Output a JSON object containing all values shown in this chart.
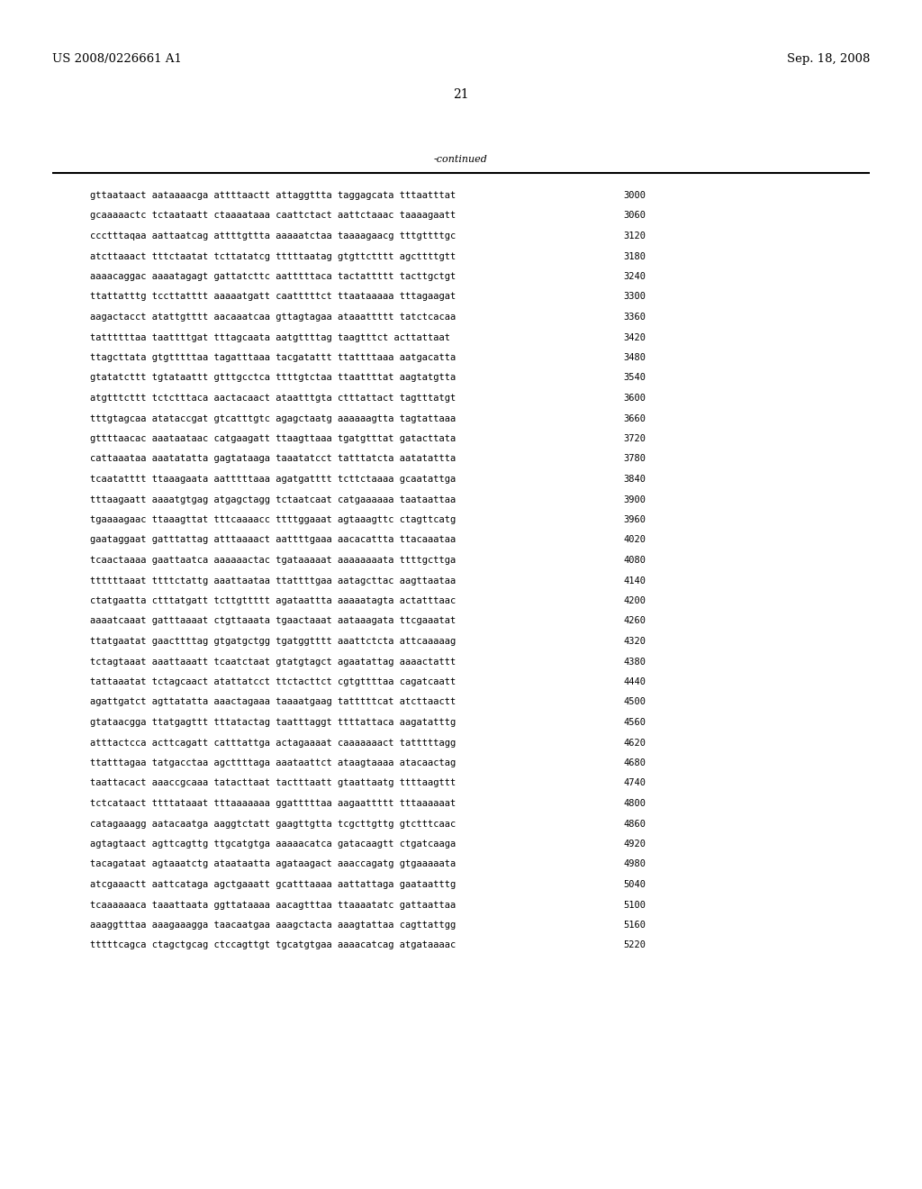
{
  "header_left": "US 2008/0226661 A1",
  "header_right": "Sep. 18, 2008",
  "page_number": "21",
  "continued_label": "-continued",
  "background_color": "#ffffff",
  "text_color": "#000000",
  "font_size_header": 9.5,
  "font_size_body": 7.5,
  "font_size_page": 10,
  "sequences": [
    [
      "gttaataact aataaaacga attttaactt attaggttta taggagcata tttaatttat",
      "3000"
    ],
    [
      "gcaaaaactc tctaataatt ctaaaataaa caattctact aattctaaac taaaagaatt",
      "3060"
    ],
    [
      "ccctttaqaa aattaatcag attttgttta aaaaatctaa taaaagaacg tttgttttgc",
      "3120"
    ],
    [
      "atcttaaact tttctaatat tcttatatcg tttttaatag gtgttctttt agcttttgtt",
      "3180"
    ],
    [
      "aaaacaggac aaaatagagt gattatcttc aatttttaca tactattttt tacttgctgt",
      "3240"
    ],
    [
      "ttattatttg tccttatttt aaaaatgatt caatttttct ttaataaaaa tttagaagat",
      "3300"
    ],
    [
      "aagactacct atattgtttt aacaaatcaa gttagtagaa ataaattttt tatctcacaa",
      "3360"
    ],
    [
      "tattttttaa taattttgat tttagcaata aatgttttag taagtttct acttattaat",
      "3420"
    ],
    [
      "ttagcttata gtgtttttaa tagatttaaa tacgatattt ttattttaaa aatgacatta",
      "3480"
    ],
    [
      "gtatatcttt tgtataattt gtttgcctca ttttgtctaa ttaattttat aagtatgtta",
      "3540"
    ],
    [
      "atgtttcttt tctctttaca aactacaact ataatttgta ctttattact tagtttatgt",
      "3600"
    ],
    [
      "tttgtagcaa atataccgat gtcatttgtc agagctaatg aaaaaagtta tagtattaaa",
      "3660"
    ],
    [
      "gttttaacac aaataataac catgaagatt ttaagttaaa tgatgtttat gatacttata",
      "3720"
    ],
    [
      "cattaaataa aaatatatta gagtataaga taaatatcct tatttatcta aatatattta",
      "3780"
    ],
    [
      "tcaatatttt ttaaagaata aatttttaaa agatgatttt tcttctaaaa gcaatattga",
      "3840"
    ],
    [
      "tttaagaatt aaaatgtgag atgagctagg tctaatcaat catgaaaaaa taataattaa",
      "3900"
    ],
    [
      "tgaaaagaac ttaaagttat tttcaaaacc ttttggaaat agtaaagttc ctagttcatg",
      "3960"
    ],
    [
      "gaataggaat gatttattag atttaaaact aattttgaaa aacacattta ttacaaataa",
      "4020"
    ],
    [
      "tcaactaaaa gaattaatca aaaaaactac tgataaaaat aaaaaaaata ttttgcttga",
      "4080"
    ],
    [
      "ttttttaaat ttttctattg aaattaataa ttattttgaa aatagcttac aagttaataa",
      "4140"
    ],
    [
      "ctatgaatta ctttatgatt tcttgttttt agataattta aaaaatagta actatttaac",
      "4200"
    ],
    [
      "aaaatcaaat gatttaaaat ctgttaaata tgaactaaat aataaagata ttcgaaatat",
      "4260"
    ],
    [
      "ttatgaatat gaacttttag gtgatgctgg tgatggtttt aaattctcta attcaaaaag",
      "4320"
    ],
    [
      "tctagtaaat aaattaaatt tcaatctaat gtatgtagct agaatattag aaaactattt",
      "4380"
    ],
    [
      "tattaaatat tctagcaact atattatcct ttctacttct cgtgttttaa cagatcaatt",
      "4440"
    ],
    [
      "agattgatct agttatatta aaactagaaa taaaatgaag tatttttcat atcttaactt",
      "4500"
    ],
    [
      "gtataacgga ttatgagttt tttatactag taatttaggt ttttattaca aagatatttg",
      "4560"
    ],
    [
      "atttactcca acttcagatt catttattga actagaaaat caaaaaaact tatttttagg",
      "4620"
    ],
    [
      "ttatttagaa tatgacctaa agcttttaga aaataattct ataagtaaaa atacaactag",
      "4680"
    ],
    [
      "taattacact aaaccgcaaa tatacttaat tactttaatt gtaattaatg ttttaagttt",
      "4740"
    ],
    [
      "tctcataact ttttataaat tttaaaaaaa ggatttttaa aagaattttt tttaaaaaat",
      "4800"
    ],
    [
      "catagaaagg aatacaatga aaggtctatt gaagttgtta tcgcttgttg gtctttcaac",
      "4860"
    ],
    [
      "agtagtaact agttcagttg ttgcatgtga aaaaacatca gatacaagtt ctgatcaaga",
      "4920"
    ],
    [
      "tacagataat agtaaatctg ataataatta agataagact aaaccagatg gtgaaaaata",
      "4980"
    ],
    [
      "atcgaaactt aattcataga agctgaaatt gcatttaaaa aattattaga gaataatttg",
      "5040"
    ],
    [
      "tcaaaaaaca taaattaata ggttataaaa aacagtttaa ttaaaatatc gattaattaa",
      "5100"
    ],
    [
      "aaaggtttaa aaagaaagga taacaatgaa aaagctacta aaagtattaa cagttattgg",
      "5160"
    ],
    [
      "tttttcagca ctagctgcag ctccagttgt tgcatgtgaa aaaacatcag atgataaaac",
      "5220"
    ]
  ]
}
